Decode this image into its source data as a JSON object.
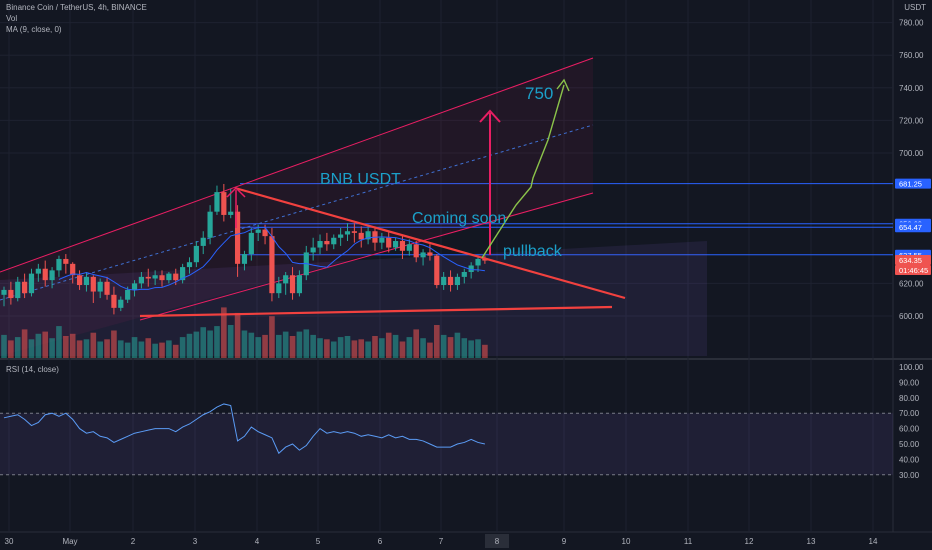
{
  "header": {
    "symbol_line": "Binance Coin / TetherUS, 4h, BINANCE",
    "vol_label": "Vol",
    "ma_label": "MA (9, close, 0)",
    "currency": "USDT"
  },
  "rsi_panel": {
    "label": "RSI (14, close)"
  },
  "colors": {
    "background": "#131722",
    "up": "#26a69a",
    "down": "#ef5350",
    "grid": "#1e2230",
    "trendline": "#f2413f",
    "channel": "#e91e63",
    "level_line": "#2962ff",
    "label_text": "#1ba0c9",
    "projection": "#8bc34a",
    "rsi_line": "#5b9cf6"
  },
  "chart_data": [
    {
      "type": "candlestick",
      "y_axis_ticks": [
        "780.00",
        "760.00",
        "740.00",
        "720.00",
        "700.00",
        "681.25",
        "656.63",
        "654.47",
        "637.55",
        "634.35",
        "620.00",
        "600.00"
      ],
      "x_axis_ticks": [
        "30",
        "May",
        "2",
        "3",
        "4",
        "5",
        "6",
        "7",
        "8",
        "9",
        "10",
        "11",
        "12",
        "13",
        "14"
      ],
      "highlighted_x_tick": "8",
      "price_tags": [
        {
          "value": "681.25",
          "style": "level"
        },
        {
          "value": "656.63",
          "style": "level"
        },
        {
          "value": "654.47",
          "style": "level"
        },
        {
          "value": "637.55",
          "style": "level"
        },
        {
          "value": "634.35",
          "style": "current"
        },
        {
          "value": "01:46:45",
          "style": "countdown"
        }
      ],
      "horizontal_levels": [
        681.25,
        656.63,
        654.47,
        637.55
      ],
      "annotations": [
        "BNB USDT",
        "Coming soon",
        "pullback",
        "750"
      ],
      "candles": [
        {
          "o": 613,
          "h": 618,
          "c": 616,
          "l": 606
        },
        {
          "o": 616,
          "h": 621,
          "c": 611,
          "l": 607
        },
        {
          "o": 611,
          "h": 624,
          "c": 621,
          "l": 609
        },
        {
          "o": 621,
          "h": 626,
          "c": 614,
          "l": 611
        },
        {
          "o": 614,
          "h": 629,
          "c": 626,
          "l": 612
        },
        {
          "o": 626,
          "h": 632,
          "c": 629,
          "l": 621
        },
        {
          "o": 629,
          "h": 634,
          "c": 622,
          "l": 618
        },
        {
          "o": 622,
          "h": 630,
          "c": 628,
          "l": 617
        },
        {
          "o": 628,
          "h": 637,
          "c": 635,
          "l": 624
        },
        {
          "o": 635,
          "h": 638,
          "c": 632,
          "l": 626
        },
        {
          "o": 632,
          "h": 633,
          "c": 625,
          "l": 620
        },
        {
          "o": 625,
          "h": 628,
          "c": 619,
          "l": 616
        },
        {
          "o": 619,
          "h": 627,
          "c": 624,
          "l": 615
        },
        {
          "o": 624,
          "h": 625,
          "c": 615,
          "l": 608
        },
        {
          "o": 615,
          "h": 623,
          "c": 621,
          "l": 611
        },
        {
          "o": 621,
          "h": 624,
          "c": 613,
          "l": 610
        },
        {
          "o": 613,
          "h": 618,
          "c": 605,
          "l": 601
        },
        {
          "o": 605,
          "h": 612,
          "c": 610,
          "l": 603
        },
        {
          "o": 610,
          "h": 618,
          "c": 616,
          "l": 608
        },
        {
          "o": 616,
          "h": 622,
          "c": 620,
          "l": 612
        },
        {
          "o": 620,
          "h": 627,
          "c": 624,
          "l": 617
        },
        {
          "o": 624,
          "h": 629,
          "c": 623,
          "l": 618
        },
        {
          "o": 623,
          "h": 628,
          "c": 625,
          "l": 619
        },
        {
          "o": 625,
          "h": 628,
          "c": 622,
          "l": 618
        },
        {
          "o": 622,
          "h": 627,
          "c": 626,
          "l": 620
        },
        {
          "o": 626,
          "h": 629,
          "c": 622,
          "l": 619
        },
        {
          "o": 622,
          "h": 632,
          "c": 630,
          "l": 620
        },
        {
          "o": 630,
          "h": 636,
          "c": 633,
          "l": 626
        },
        {
          "o": 633,
          "h": 646,
          "c": 643,
          "l": 630
        },
        {
          "o": 643,
          "h": 652,
          "c": 648,
          "l": 638
        },
        {
          "o": 648,
          "h": 668,
          "c": 664,
          "l": 644
        },
        {
          "o": 664,
          "h": 680,
          "c": 676,
          "l": 662
        },
        {
          "o": 676,
          "h": 681,
          "c": 662,
          "l": 658
        },
        {
          "o": 662,
          "h": 678,
          "c": 664,
          "l": 660
        },
        {
          "o": 664,
          "h": 668,
          "c": 632,
          "l": 624
        },
        {
          "o": 632,
          "h": 640,
          "c": 638,
          "l": 628
        },
        {
          "o": 638,
          "h": 654,
          "c": 651,
          "l": 634
        },
        {
          "o": 651,
          "h": 656,
          "c": 653,
          "l": 646
        },
        {
          "o": 653,
          "h": 656,
          "c": 649,
          "l": 644
        },
        {
          "o": 649,
          "h": 654,
          "c": 614,
          "l": 609
        },
        {
          "o": 614,
          "h": 624,
          "c": 620,
          "l": 611
        },
        {
          "o": 620,
          "h": 627,
          "c": 625,
          "l": 613
        },
        {
          "o": 625,
          "h": 630,
          "c": 614,
          "l": 610
        },
        {
          "o": 614,
          "h": 628,
          "c": 625,
          "l": 612
        },
        {
          "o": 625,
          "h": 643,
          "c": 639,
          "l": 622
        },
        {
          "o": 639,
          "h": 648,
          "c": 642,
          "l": 634
        },
        {
          "o": 642,
          "h": 650,
          "c": 646,
          "l": 638
        },
        {
          "o": 646,
          "h": 651,
          "c": 644,
          "l": 640
        },
        {
          "o": 644,
          "h": 650,
          "c": 648,
          "l": 641
        },
        {
          "o": 648,
          "h": 654,
          "c": 650,
          "l": 643
        },
        {
          "o": 650,
          "h": 657,
          "c": 652,
          "l": 646
        },
        {
          "o": 652,
          "h": 657,
          "c": 651,
          "l": 645
        },
        {
          "o": 651,
          "h": 655,
          "c": 647,
          "l": 642
        },
        {
          "o": 647,
          "h": 656,
          "c": 652,
          "l": 644
        },
        {
          "o": 652,
          "h": 655,
          "c": 645,
          "l": 640
        },
        {
          "o": 645,
          "h": 651,
          "c": 648,
          "l": 641
        },
        {
          "o": 648,
          "h": 652,
          "c": 642,
          "l": 639
        },
        {
          "o": 642,
          "h": 648,
          "c": 646,
          "l": 640
        },
        {
          "o": 646,
          "h": 650,
          "c": 640,
          "l": 635
        },
        {
          "o": 640,
          "h": 647,
          "c": 644,
          "l": 637
        },
        {
          "o": 644,
          "h": 646,
          "c": 636,
          "l": 633
        },
        {
          "o": 636,
          "h": 641,
          "c": 639,
          "l": 631
        },
        {
          "o": 639,
          "h": 644,
          "c": 637,
          "l": 634
        },
        {
          "o": 637,
          "h": 638,
          "c": 619,
          "l": 617
        },
        {
          "o": 619,
          "h": 627,
          "c": 624,
          "l": 616
        },
        {
          "o": 624,
          "h": 628,
          "c": 619,
          "l": 615
        },
        {
          "o": 619,
          "h": 626,
          "c": 624,
          "l": 616
        },
        {
          "o": 624,
          "h": 629,
          "c": 627,
          "l": 620
        },
        {
          "o": 627,
          "h": 633,
          "c": 631,
          "l": 623
        },
        {
          "o": 631,
          "h": 637,
          "c": 635,
          "l": 627
        },
        {
          "o": 635,
          "h": 637,
          "c": 634,
          "l": 632
        }
      ],
      "volumes": [
        2.1,
        1.6,
        1.9,
        2.6,
        1.7,
        2.2,
        2.4,
        1.8,
        2.9,
        2.0,
        2.2,
        1.6,
        1.7,
        2.3,
        1.5,
        1.7,
        2.5,
        1.6,
        1.4,
        1.9,
        1.5,
        1.8,
        1.3,
        1.4,
        1.6,
        1.2,
        1.9,
        2.2,
        2.4,
        2.8,
        2.5,
        2.9,
        4.6,
        3.0,
        4.1,
        2.5,
        2.3,
        1.9,
        2.1,
        3.8,
        2.1,
        2.4,
        2.0,
        2.4,
        2.6,
        2.1,
        1.8,
        1.7,
        1.5,
        1.9,
        2.0,
        1.6,
        1.7,
        1.5,
        2.0,
        1.8,
        2.3,
        2.1,
        1.5,
        1.9,
        2.6,
        1.8,
        1.4,
        3.0,
        2.1,
        1.9,
        2.3,
        1.8,
        1.6,
        1.7,
        1.2
      ]
    },
    {
      "type": "line",
      "series": [
        {
          "name": "RSI (14, close)",
          "values": [
            67,
            68,
            69,
            66,
            62,
            64,
            69,
            70,
            68,
            70,
            66,
            60,
            57,
            58,
            55,
            54,
            51,
            53,
            55,
            57,
            58,
            59,
            60,
            60,
            60,
            58,
            61,
            63,
            66,
            69,
            71,
            74,
            76,
            75,
            52,
            55,
            61,
            58,
            56,
            54,
            44,
            48,
            50,
            46,
            49,
            55,
            60,
            57,
            58,
            57,
            58,
            57,
            55,
            56,
            55,
            54,
            56,
            54,
            55,
            53,
            53,
            52,
            50,
            48,
            48,
            48,
            50,
            51,
            53,
            51,
            50
          ]
        }
      ],
      "y_axis_ticks": [
        "100.00",
        "90.00",
        "80.00",
        "70.00",
        "60.00",
        "50.00",
        "40.00",
        "30.00"
      ],
      "ylim": [
        25,
        100
      ],
      "bands": [
        30,
        70
      ]
    }
  ]
}
